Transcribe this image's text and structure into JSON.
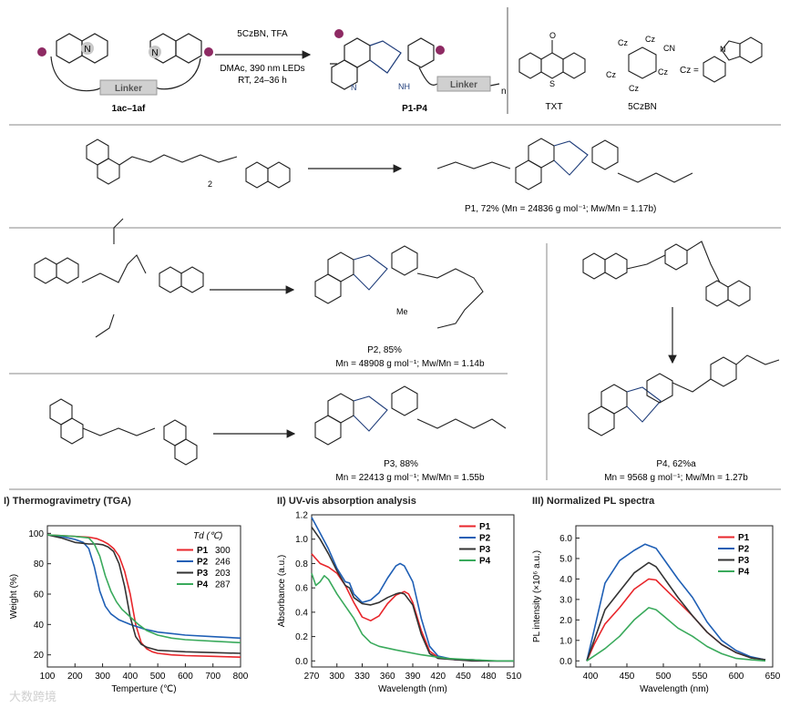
{
  "scheme": {
    "top": {
      "reactant_label": "1ac–1af",
      "linker": "Linker",
      "n_label": "N",
      "conditions": [
        "5CzBN, TFA",
        "DMAc, 390 nm LEDs",
        "RT, 24–36 h"
      ],
      "product_label": "P1-P4",
      "nh": "NH",
      "n_sub": "n"
    },
    "catalysts": {
      "txt_label": "TXT",
      "czbn_label": "5CzBN",
      "cz": "Cz",
      "cn": "CN",
      "cz_eq": "Cz =",
      "o": "O",
      "s": "S",
      "n": "N"
    },
    "rows": [
      {
        "id": "P1",
        "yield_text": "P1, 72% (Mn = 24836 g mol⁻¹; Mw/Mn = 1.17b)",
        "reactant_extra": "2"
      },
      {
        "id": "P2",
        "yield_text": "P2, 85%",
        "mn_text": "Mn = 48908 g mol⁻¹; Mw/Mn = 1.14b",
        "me": "Me"
      },
      {
        "id": "P3",
        "yield_text": "P3, 88%",
        "mn_text": "Mn = 22413 g mol⁻¹; Mw/Mn = 1.55b"
      },
      {
        "id": "P4",
        "yield_text": "P4, 62%a",
        "mn_text": "Mn = 9568 g mol⁻¹; Mw/Mn = 1.27b"
      }
    ]
  },
  "chart_data": [
    {
      "type": "line",
      "title": "I) Thermogravimetry (TGA)",
      "xlabel": "Temperture (℃)",
      "ylabel": "Weight (%)",
      "xlim": [
        100,
        800
      ],
      "ylim": [
        12,
        105
      ],
      "xticks": [
        100,
        200,
        300,
        400,
        500,
        600,
        700,
        800
      ],
      "yticks": [
        20,
        40,
        60,
        80,
        100
      ],
      "legend_title": "Td (℃)",
      "legend_position": "top-right",
      "series": [
        {
          "name": "P1",
          "legend_value": "300",
          "color": "#e8262b",
          "x": [
            100,
            150,
            200,
            250,
            280,
            300,
            320,
            340,
            360,
            380,
            400,
            420,
            440,
            460,
            480,
            500,
            550,
            600,
            700,
            800
          ],
          "y": [
            99,
            98.5,
            98,
            97.5,
            96.5,
            95,
            93,
            90,
            85,
            75,
            60,
            40,
            28,
            24,
            22,
            21,
            20,
            19.5,
            19,
            18.5
          ]
        },
        {
          "name": "P2",
          "legend_value": "246",
          "color": "#1f5fb5",
          "x": [
            100,
            150,
            200,
            230,
            250,
            270,
            290,
            310,
            330,
            360,
            400,
            450,
            500,
            550,
            600,
            700,
            800
          ],
          "y": [
            99,
            98,
            96,
            94,
            90,
            78,
            62,
            52,
            47,
            43,
            40,
            37,
            35,
            34,
            33,
            32,
            31
          ]
        },
        {
          "name": "P3",
          "legend_value": "203",
          "color": "#333333",
          "x": [
            100,
            150,
            200,
            250,
            280,
            300,
            320,
            340,
            360,
            380,
            400,
            420,
            440,
            460,
            480,
            500,
            550,
            600,
            700,
            800
          ],
          "y": [
            99,
            97,
            94,
            93,
            93,
            92.5,
            91,
            88,
            80,
            65,
            45,
            32,
            27,
            25,
            24,
            23,
            22.5,
            22,
            21.5,
            21
          ]
        },
        {
          "name": "P4",
          "legend_value": "287",
          "color": "#3aaa5c",
          "x": [
            100,
            150,
            200,
            250,
            270,
            290,
            310,
            330,
            350,
            370,
            400,
            430,
            460,
            500,
            550,
            600,
            700,
            800
          ],
          "y": [
            99,
            98.5,
            98,
            97,
            93,
            85,
            72,
            62,
            55,
            50,
            45,
            40,
            36,
            33,
            31,
            30,
            29,
            28
          ]
        }
      ]
    },
    {
      "type": "line",
      "title": "II) UV-vis absorption analysis",
      "xlabel": "Wavelength (nm)",
      "ylabel": "Absorbance (a.u.)",
      "xlim": [
        270,
        510
      ],
      "ylim": [
        -0.05,
        1.2
      ],
      "xticks": [
        270,
        300,
        330,
        360,
        390,
        420,
        450,
        480,
        510
      ],
      "yticks": [
        0.0,
        0.2,
        0.4,
        0.6,
        0.8,
        1.0,
        1.2
      ],
      "legend_position": "top-right",
      "series": [
        {
          "name": "P1",
          "color": "#e8262b",
          "x": [
            270,
            280,
            290,
            300,
            310,
            320,
            330,
            340,
            350,
            360,
            370,
            380,
            385,
            390,
            400,
            410,
            420,
            440,
            460,
            480,
            510
          ],
          "y": [
            0.88,
            0.8,
            0.77,
            0.72,
            0.62,
            0.48,
            0.36,
            0.33,
            0.37,
            0.47,
            0.54,
            0.57,
            0.55,
            0.48,
            0.25,
            0.08,
            0.03,
            0.01,
            0.01,
            0.0,
            0.0
          ]
        },
        {
          "name": "P2",
          "color": "#1f5fb5",
          "x": [
            270,
            280,
            290,
            300,
            310,
            315,
            320,
            330,
            340,
            350,
            360,
            370,
            375,
            380,
            390,
            400,
            410,
            420,
            440,
            460,
            480,
            510
          ],
          "y": [
            1.18,
            1.05,
            0.92,
            0.76,
            0.65,
            0.64,
            0.55,
            0.48,
            0.5,
            0.56,
            0.68,
            0.78,
            0.8,
            0.78,
            0.65,
            0.35,
            0.12,
            0.04,
            0.01,
            0.01,
            0.0,
            0.0
          ]
        },
        {
          "name": "P3",
          "color": "#333333",
          "x": [
            270,
            280,
            290,
            300,
            310,
            315,
            320,
            330,
            340,
            350,
            360,
            370,
            375,
            380,
            390,
            400,
            410,
            420,
            440,
            460,
            480,
            510
          ],
          "y": [
            1.1,
            1.0,
            0.88,
            0.74,
            0.62,
            0.6,
            0.52,
            0.47,
            0.46,
            0.48,
            0.52,
            0.55,
            0.56,
            0.55,
            0.46,
            0.22,
            0.06,
            0.02,
            0.01,
            0.0,
            0.0,
            0.0
          ]
        },
        {
          "name": "P4",
          "color": "#3aaa5c",
          "x": [
            270,
            275,
            280,
            285,
            290,
            300,
            310,
            320,
            330,
            340,
            350,
            370,
            400,
            430,
            460,
            490,
            510
          ],
          "y": [
            0.72,
            0.62,
            0.65,
            0.7,
            0.67,
            0.55,
            0.45,
            0.35,
            0.22,
            0.15,
            0.12,
            0.09,
            0.05,
            0.02,
            0.01,
            0.0,
            0.0
          ]
        }
      ]
    },
    {
      "type": "line",
      "title": "III) Normalized PL spectra",
      "xlabel": "Wavelength (nm)",
      "ylabel": "PL intensity (×10⁶ a.u.)",
      "xlim": [
        380,
        650
      ],
      "ylim": [
        -0.3,
        6.6
      ],
      "xticks": [
        400,
        450,
        500,
        550,
        600,
        650
      ],
      "yticks": [
        0.0,
        1.0,
        2.0,
        3.0,
        4.0,
        5.0,
        6.0
      ],
      "legend_position": "top-right",
      "series": [
        {
          "name": "P1",
          "color": "#e8262b",
          "x": [
            395,
            405,
            420,
            440,
            460,
            480,
            490,
            500,
            520,
            540,
            560,
            580,
            600,
            620,
            640
          ],
          "y": [
            0.0,
            0.8,
            1.8,
            2.6,
            3.5,
            4.0,
            3.95,
            3.6,
            2.9,
            2.2,
            1.4,
            0.8,
            0.4,
            0.15,
            0.05
          ]
        },
        {
          "name": "P2",
          "color": "#1f5fb5",
          "x": [
            395,
            405,
            420,
            440,
            460,
            475,
            490,
            500,
            520,
            540,
            560,
            580,
            600,
            620,
            640
          ],
          "y": [
            0.0,
            1.5,
            3.8,
            4.9,
            5.4,
            5.7,
            5.5,
            5.0,
            4.0,
            3.1,
            1.9,
            1.0,
            0.5,
            0.2,
            0.05
          ]
        },
        {
          "name": "P3",
          "color": "#333333",
          "x": [
            395,
            405,
            420,
            440,
            460,
            480,
            490,
            500,
            520,
            540,
            560,
            580,
            600,
            620,
            640
          ],
          "y": [
            0.0,
            1.0,
            2.5,
            3.4,
            4.3,
            4.8,
            4.6,
            4.1,
            3.1,
            2.2,
            1.4,
            0.8,
            0.4,
            0.15,
            0.05
          ]
        },
        {
          "name": "P4",
          "color": "#3aaa5c",
          "x": [
            395,
            420,
            440,
            460,
            480,
            490,
            500,
            520,
            540,
            560,
            580,
            600,
            620,
            640
          ],
          "y": [
            0.0,
            0.6,
            1.2,
            2.0,
            2.6,
            2.5,
            2.2,
            1.6,
            1.2,
            0.7,
            0.35,
            0.12,
            0.05,
            0.0
          ]
        }
      ]
    }
  ],
  "watermark": "大数跨境"
}
